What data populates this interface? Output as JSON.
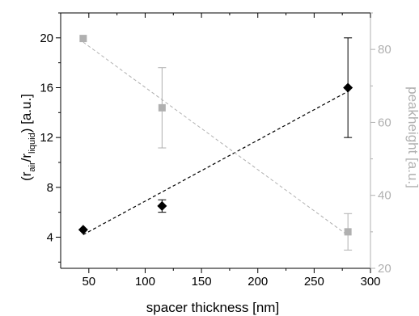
{
  "chart_data": {
    "type": "scatter",
    "xlabel": "spacer thickness [nm]",
    "ylabel_left": {
      "prefix": "(r",
      "sub1": "air",
      "mid": "/r",
      "sub2": "liquid",
      "suffix": ") [a.u.]"
    },
    "ylabel_right": "peakheight [a.u.]",
    "xlim": [
      25,
      300
    ],
    "ylim_left": [
      1.5,
      22
    ],
    "ylim_right": [
      20,
      90
    ],
    "x_ticks": [
      50,
      100,
      150,
      200,
      250,
      300
    ],
    "y_left_ticks": [
      4,
      8,
      12,
      16,
      20
    ],
    "y_right_ticks": [
      20,
      40,
      60,
      80
    ],
    "colors": {
      "primary": "#000000",
      "secondary": "#b0b0b0"
    },
    "series": [
      {
        "axis": "left",
        "marker": "diamond",
        "color": "#000000",
        "x": [
          45,
          115,
          280
        ],
        "y": [
          4.6,
          6.5,
          16.0
        ],
        "yerr": [
          0,
          0.5,
          4.0
        ],
        "fit": {
          "x": [
            45,
            280
          ],
          "y": [
            4.2,
            15.7
          ]
        }
      },
      {
        "axis": "right",
        "marker": "square",
        "color": "#b0b0b0",
        "x": [
          45,
          115,
          280
        ],
        "y": [
          83,
          64,
          30
        ],
        "yerr": [
          0,
          11,
          5
        ],
        "fit": {
          "x": [
            45,
            280
          ],
          "y": [
            82,
            29
          ]
        }
      }
    ]
  }
}
